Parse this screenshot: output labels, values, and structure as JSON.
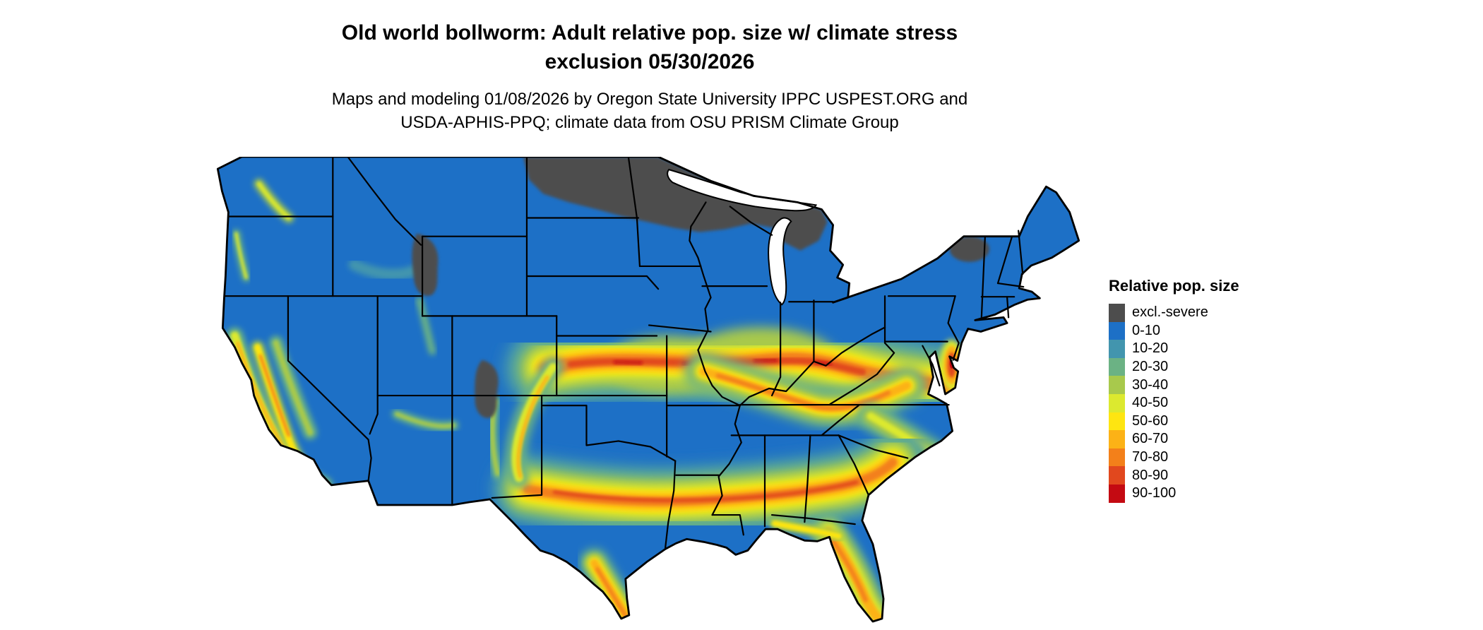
{
  "title": {
    "line1": "Old world bollworm: Adult relative pop. size w/ climate stress",
    "line2": "exclusion 05/30/2026"
  },
  "subtitle": {
    "line1": "Maps and modeling 01/08/2026 by Oregon State University IPPC USPEST.ORG and",
    "line2": "USDA-APHIS-PPQ; climate data from OSU PRISM Climate Group"
  },
  "legend": {
    "title": "Relative pop. size",
    "items": [
      {
        "label": "excl.-severe",
        "color": "#4d4d4d"
      },
      {
        "label": "0-10",
        "color": "#1d70c6"
      },
      {
        "label": "10-20",
        "color": "#4295ae"
      },
      {
        "label": "20-30",
        "color": "#6bb284"
      },
      {
        "label": "30-40",
        "color": "#a8c94c"
      },
      {
        "label": "40-50",
        "color": "#dce92f"
      },
      {
        "label": "50-60",
        "color": "#fee511"
      },
      {
        "label": "60-70",
        "color": "#fcb216"
      },
      {
        "label": "70-80",
        "color": "#f3801a"
      },
      {
        "label": "80-90",
        "color": "#e1481e"
      },
      {
        "label": "90-100",
        "color": "#c40a12"
      }
    ]
  },
  "map": {
    "region": "Continental United States",
    "base_class": "0-10",
    "water_color": "#ffffff",
    "border_color": "#000000",
    "excluded_severe_areas": [
      "eastern North Dakota / northern Minnesota / northern Wisconsin / upper Michigan",
      "Adirondacks and northern New England",
      "Yellowstone high Rockies",
      "Colorado Rockies"
    ],
    "high_population_bands": [
      "central band from Kansas through Missouri, Illinois, Indiana, Ohio and Kentucky into Virginia (60-90)",
      "southern band from central Texas through Louisiana, Mississippi, Alabama and Georgia to the Carolina coast (50-80)",
      "south Texas / Rio Grande valley (60-80)",
      "central Florida peninsula (60-80)",
      "California coast ranges and Central Valley (40-80)",
      "Mid-Atlantic coast, New Jersey / Delmarva (80-90)"
    ]
  }
}
